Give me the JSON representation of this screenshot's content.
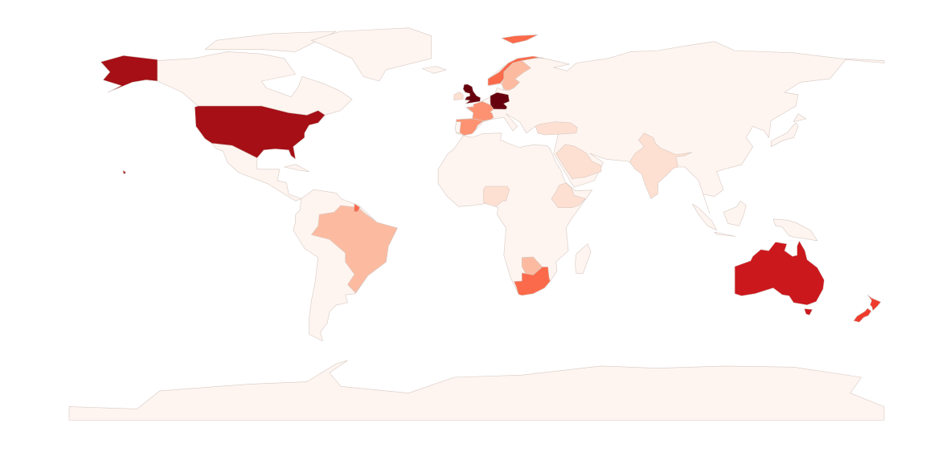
{
  "map": {
    "fills": [
      "#fff5f0",
      "#fee0d2",
      "#fcbba1",
      "#fc9272",
      "#fb6a4a",
      "#ef3b2c",
      "#cb181d",
      "#a50f15",
      "#67000d"
    ],
    "stroke": "#d6c8c2"
  }
}
